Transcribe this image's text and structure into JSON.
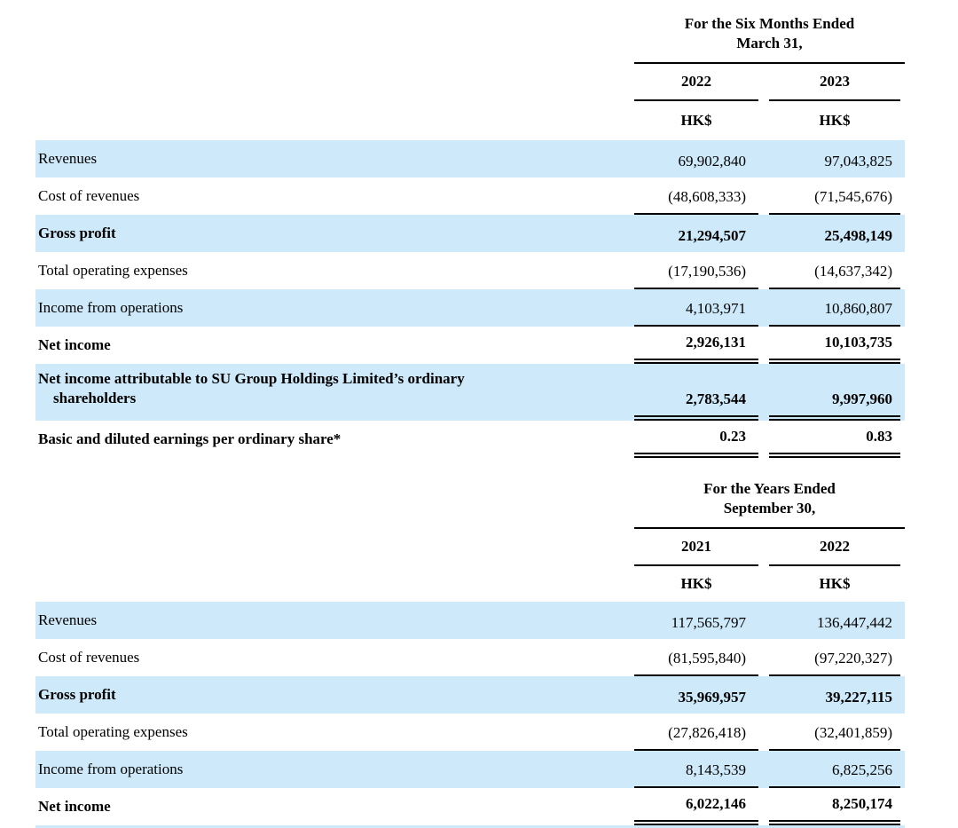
{
  "page": {
    "highlight_color": "#cee9f9",
    "text_color": "#000000"
  },
  "tables": [
    {
      "header": {
        "period_line1": "For the Six Months Ended",
        "period_line2": "March 31,",
        "years": [
          "2022",
          "2023"
        ],
        "currencies": [
          "HK$",
          "HK$"
        ]
      },
      "rows": [
        {
          "label": "Revenues",
          "v1": "69,902,840",
          "v2": "97,043,825"
        },
        {
          "label": "Cost of revenues",
          "v1": "(48,608,333)",
          "v2": "(71,545,676)"
        },
        {
          "label": "Gross profit",
          "v1": "21,294,507",
          "v2": "25,498,149"
        },
        {
          "label": "Total operating expenses",
          "v1": "(17,190,536)",
          "v2": "(14,637,342)"
        },
        {
          "label": "Income from operations",
          "v1": "4,103,971",
          "v2": "10,860,807"
        },
        {
          "label": "Net income",
          "v1": "2,926,131",
          "v2": "10,103,735"
        },
        {
          "label_line1": "Net income attributable to SU Group Holdings Limited’s ordinary",
          "label_line2": "shareholders",
          "v1": "2,783,544",
          "v2": "9,997,960"
        },
        {
          "label": "Basic and diluted earnings per ordinary share*",
          "v1": "0.23",
          "v2": "0.83"
        }
      ]
    },
    {
      "header": {
        "period_line1": "For the Years Ended",
        "period_line2": "September 30,",
        "years": [
          "2021",
          "2022"
        ],
        "currencies": [
          "HK$",
          "HK$"
        ]
      },
      "rows": [
        {
          "label": "Revenues",
          "v1": "117,565,797",
          "v2": "136,447,442"
        },
        {
          "label": "Cost of revenues",
          "v1": "(81,595,840)",
          "v2": "(97,220,327)"
        },
        {
          "label": "Gross profit",
          "v1": "35,969,957",
          "v2": "39,227,115"
        },
        {
          "label": "Total operating expenses",
          "v1": "(27,826,418)",
          "v2": "(32,401,859)"
        },
        {
          "label": "Income from operations",
          "v1": "8,143,539",
          "v2": "6,825,256"
        },
        {
          "label": "Net income",
          "v1": "6,022,146",
          "v2": "8,250,174"
        }
      ]
    }
  ]
}
